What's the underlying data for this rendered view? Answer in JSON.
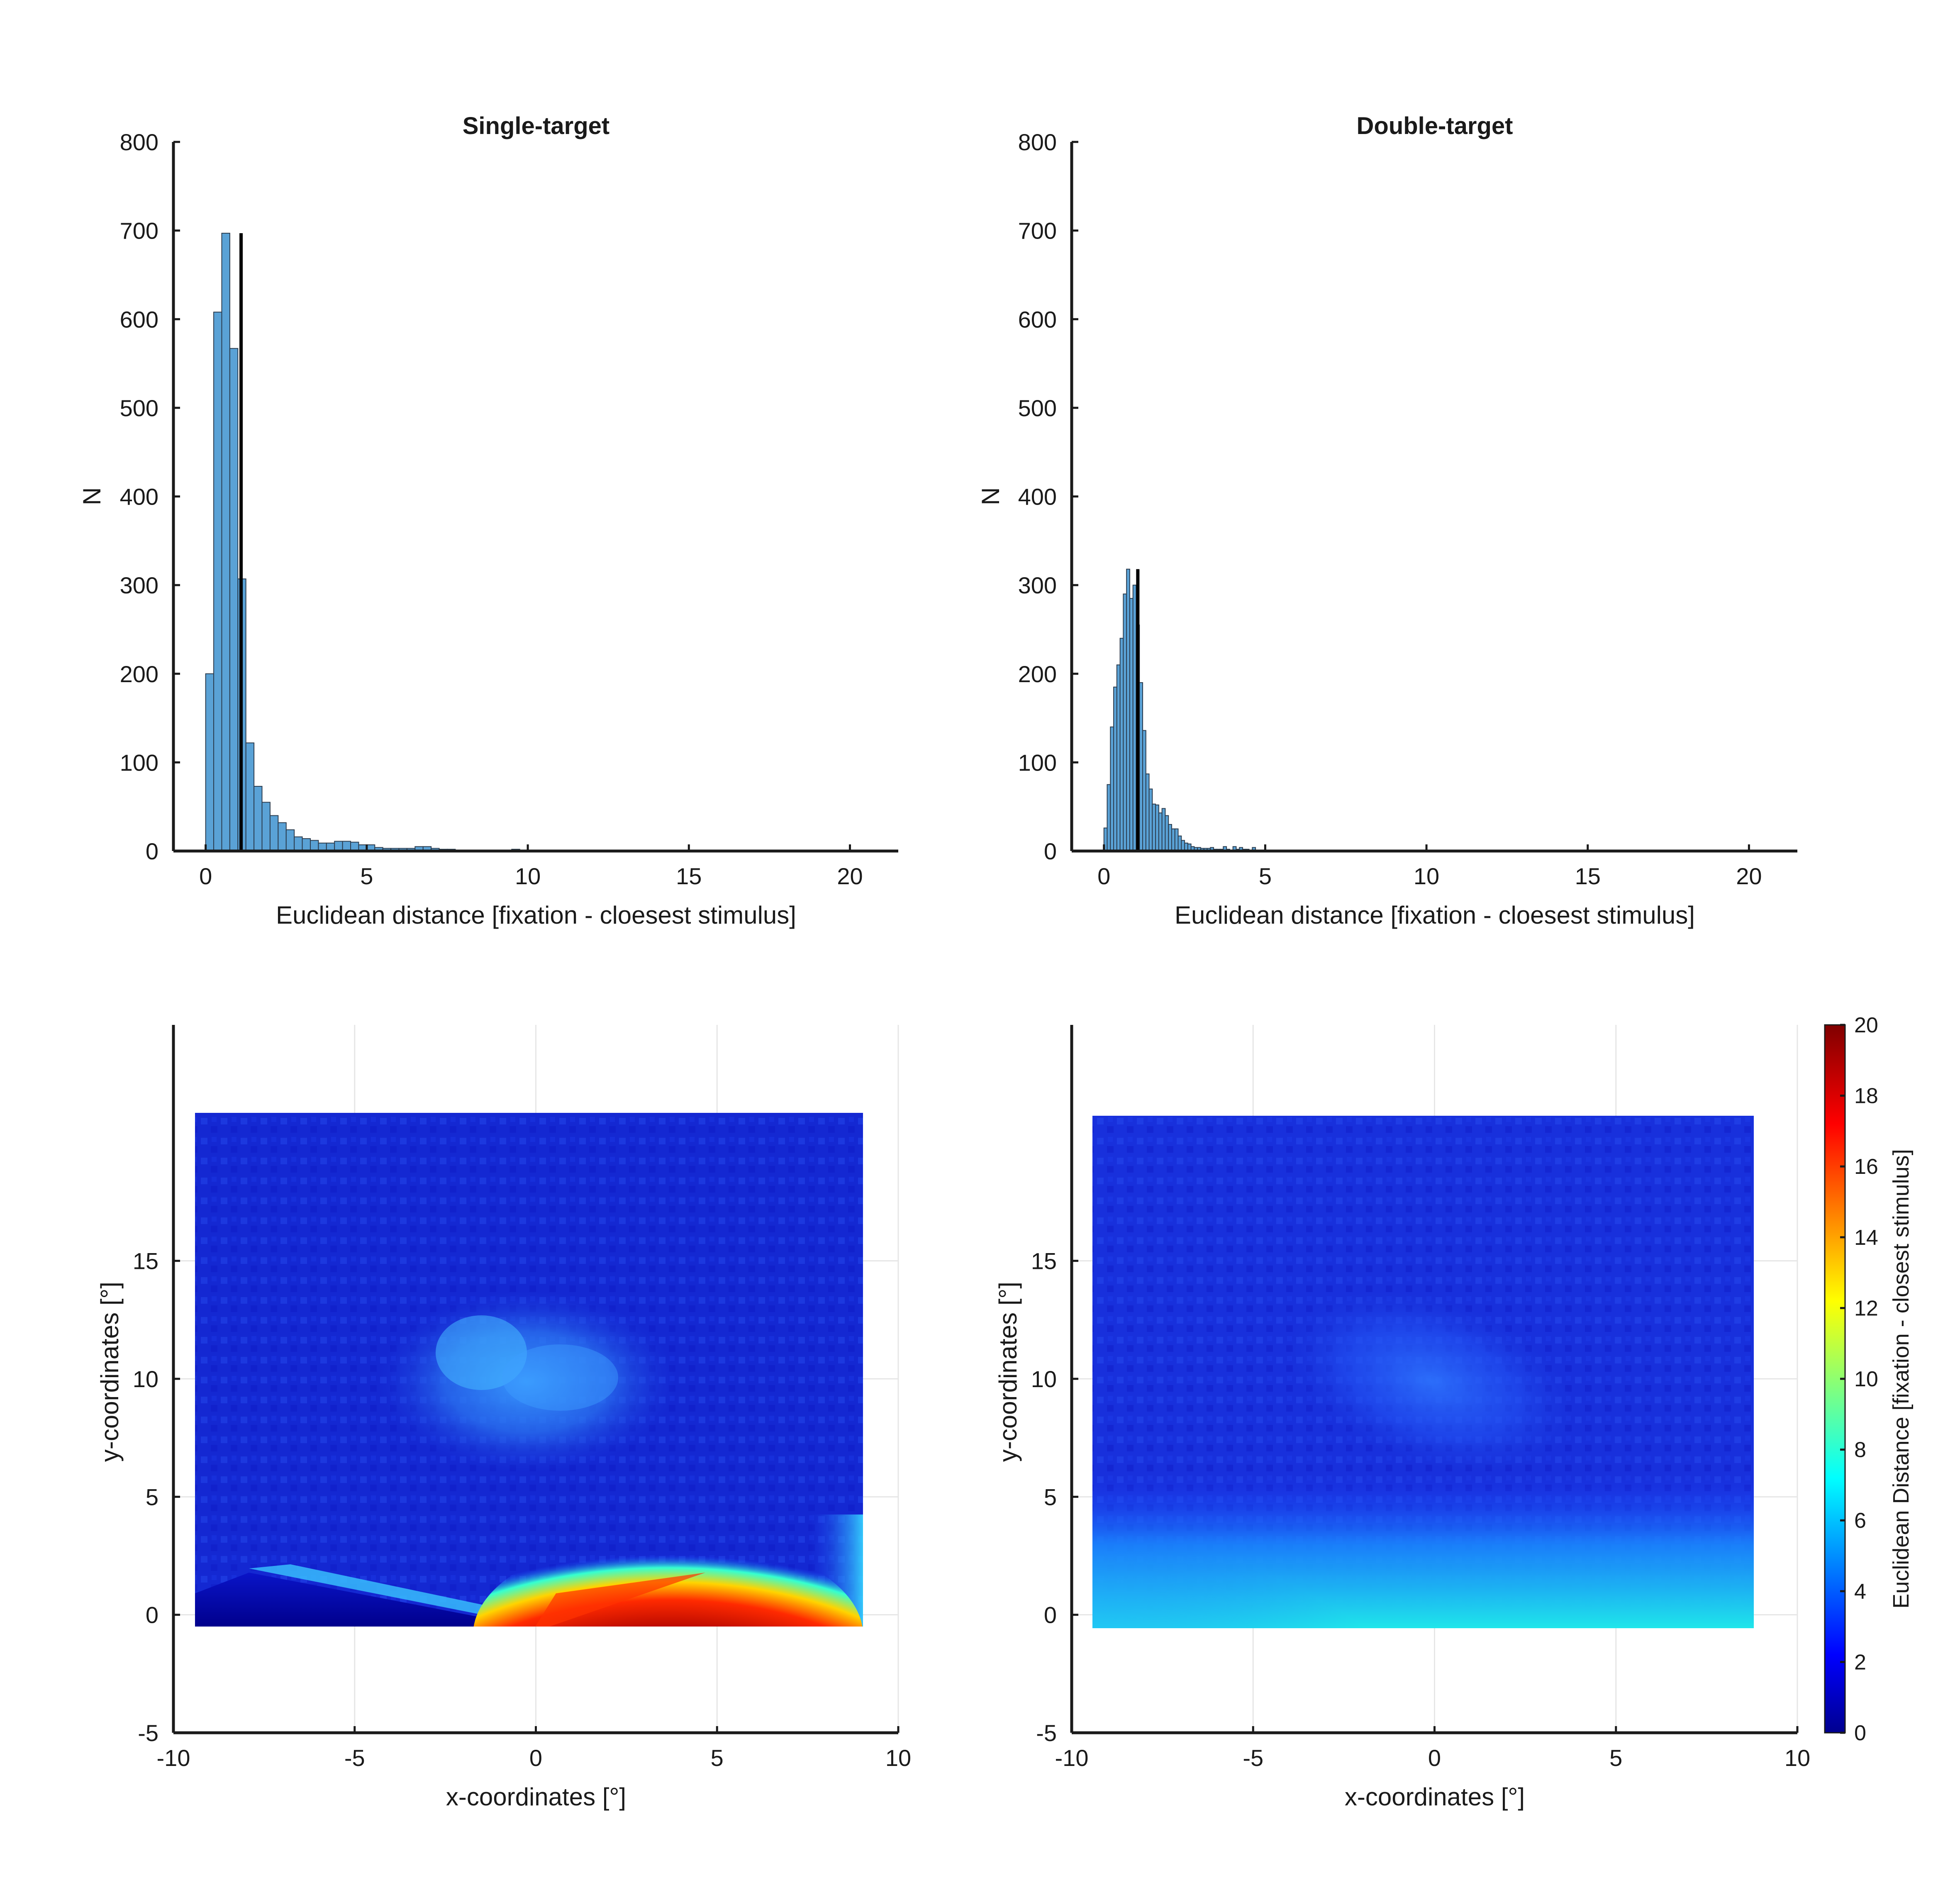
{
  "chart_data": [
    {
      "type": "histogram",
      "title": "Single-target",
      "xlabel": "Euclidean distance [fixation - cloesest stimulus]",
      "ylabel": "N",
      "xlim": [
        -1,
        21.5
      ],
      "ylim": [
        0,
        800
      ],
      "xticks": [
        "0",
        "5",
        "10",
        "15",
        "20"
      ],
      "yticks": [
        "0",
        "100",
        "200",
        "300",
        "400",
        "500",
        "600",
        "700",
        "800"
      ],
      "bin_width": 0.25,
      "bin_start": 0,
      "values": [
        200,
        608,
        697,
        567,
        307,
        122,
        73,
        55,
        40,
        32,
        24,
        16,
        14,
        12,
        9,
        9,
        11,
        11,
        10,
        7,
        7,
        4,
        3,
        3,
        3,
        3,
        5,
        5,
        3,
        2,
        2,
        1,
        1,
        1,
        1,
        1,
        1,
        1,
        2,
        1,
        1,
        1,
        1,
        0,
        0,
        0,
        0,
        0,
        0,
        0,
        0,
        0,
        0,
        0,
        0,
        0,
        0,
        0,
        0,
        0,
        0,
        0,
        0,
        0,
        0,
        0,
        0,
        0,
        0,
        0,
        0,
        0,
        0,
        0,
        0,
        0,
        0,
        0,
        0,
        0,
        0,
        1
      ],
      "bar_color": "#5aa2d6",
      "reference_line": {
        "x": 1.1,
        "y_top": 697,
        "color": "#000000"
      }
    },
    {
      "type": "histogram",
      "title": "Double-target",
      "xlabel": "Euclidean distance [fixation - cloesest stimulus]",
      "ylabel": "N",
      "xlim": [
        -1,
        21.5
      ],
      "ylim": [
        0,
        800
      ],
      "xticks": [
        "0",
        "5",
        "10",
        "15",
        "20"
      ],
      "yticks": [
        "0",
        "100",
        "200",
        "300",
        "400",
        "500",
        "600",
        "700",
        "800"
      ],
      "bin_width": 0.1,
      "bin_start": 0,
      "values": [
        26,
        75,
        140,
        185,
        210,
        240,
        290,
        318,
        285,
        300,
        255,
        190,
        136,
        87,
        70,
        53,
        52,
        43,
        48,
        40,
        30,
        25,
        25,
        17,
        12,
        9,
        8,
        5,
        4,
        4,
        3,
        3,
        3,
        4,
        2,
        2,
        2,
        5,
        2,
        1,
        5,
        2,
        4,
        2,
        2,
        1,
        4,
        1,
        1,
        1,
        1
      ],
      "bar_color": "#5aa2d6",
      "reference_line": {
        "x": 1.05,
        "y_top": 318,
        "color": "#000000"
      }
    },
    {
      "type": "heatmap",
      "xlabel": "x-coordinates [°]",
      "ylabel": "y-coordinates [°]",
      "xlim": [
        -10,
        10
      ],
      "ylim": [
        -5,
        25
      ],
      "xticks": [
        "-10",
        "-5",
        "0",
        "5",
        "10"
      ],
      "yticks": [
        "-5",
        "0",
        "5",
        "10",
        "15"
      ],
      "grid": true,
      "colormap": "jet",
      "clim": [
        0,
        20
      ],
      "extent": {
        "x": [
          -9.4,
          9.1
        ],
        "y": [
          -0.5,
          21.3
        ]
      },
      "description_values": "Euclidean distance per fixation location"
    },
    {
      "type": "heatmap",
      "xlabel": "x-coordinates [°]",
      "ylabel": "y-coordinates [°]",
      "xlim": [
        -10,
        10
      ],
      "ylim": [
        -5,
        25
      ],
      "xticks": [
        "-10",
        "-5",
        "0",
        "5",
        "10"
      ],
      "yticks": [
        "-5",
        "0",
        "5",
        "10",
        "15"
      ],
      "grid": true,
      "colormap": "jet",
      "clim": [
        0,
        20
      ],
      "extent": {
        "x": [
          -9.4,
          8.9
        ],
        "y": [
          -0.6,
          21.2
        ]
      },
      "colorbar": {
        "label": "Euclidean Distance [fixation - closest stimulus]",
        "ticks": [
          "0",
          "2",
          "4",
          "6",
          "8",
          "10",
          "12",
          "14",
          "16",
          "18",
          "20"
        ]
      }
    }
  ]
}
